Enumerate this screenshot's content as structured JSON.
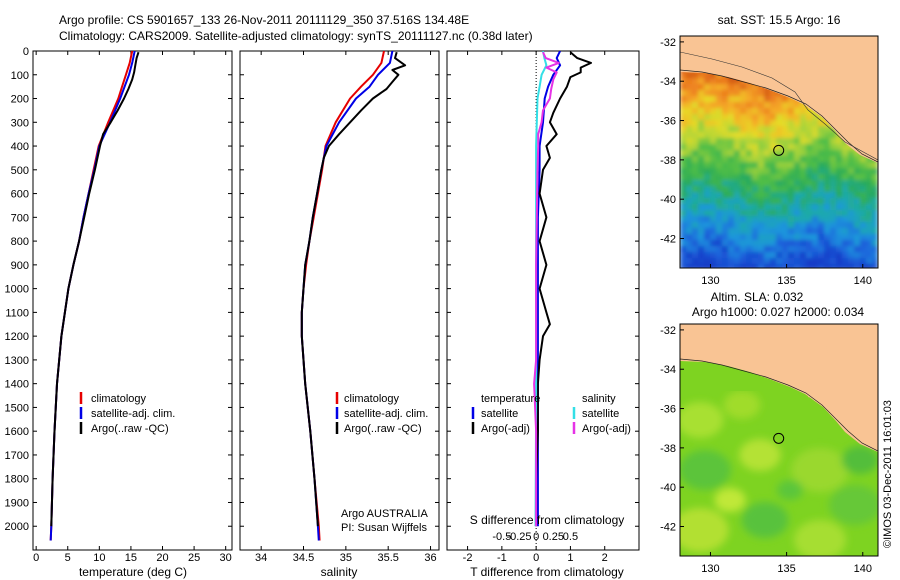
{
  "header": {
    "line1": "Argo profile: CS 5901657_133 26-Nov-2011 20111129_350 37.516S 134.48E",
    "line2": "Climatology: CARS2009. Satellite-adjusted climatology: synTS_20111127.nc (0.38d later)"
  },
  "credit": "©IMOS 03-Dec-2011 16:01:03",
  "colors": {
    "climatology": "#e60000",
    "satellite": "#0000e6",
    "argo": "#000000",
    "sal_satellite": "#33dfe6",
    "sal_argo": "#e633e6",
    "land": "#f9c494"
  },
  "chart_data": [
    {
      "type": "line",
      "panel": "temperature",
      "xlabel": "temperature (deg C)",
      "ylabel": "",
      "xlim": [
        -0.5,
        31
      ],
      "ylim": [
        2100,
        0
      ],
      "xticks": [
        0,
        5,
        10,
        15,
        20,
        25,
        30
      ],
      "yticks": [
        0,
        100,
        200,
        300,
        400,
        500,
        600,
        700,
        800,
        900,
        1000,
        1100,
        1200,
        1300,
        1400,
        1500,
        1600,
        1700,
        1800,
        1900,
        2000
      ],
      "legend": [
        "climatology",
        "satellite-adj. clim.",
        "Argo(..raw -QC)"
      ],
      "series": [
        {
          "name": "climatology",
          "color": "#e60000",
          "depth": [
            0,
            50,
            100,
            150,
            200,
            300,
            400,
            500,
            600,
            700,
            800,
            900,
            1000,
            1200,
            1400,
            1600,
            1800,
            2000,
            2060
          ],
          "values": [
            15.2,
            14.8,
            14.2,
            13.6,
            13.0,
            11.4,
            9.9,
            9.1,
            8.3,
            7.5,
            6.8,
            5.9,
            5.1,
            4.0,
            3.3,
            2.9,
            2.6,
            2.4,
            2.3
          ]
        },
        {
          "name": "satellite-adj. clim.",
          "color": "#0000e6",
          "depth": [
            0,
            50,
            100,
            150,
            200,
            300,
            400,
            500,
            600,
            700,
            800,
            900,
            1000,
            1200,
            1400,
            1600,
            1800,
            2000,
            2060
          ],
          "values": [
            15.6,
            15.2,
            14.7,
            14.0,
            13.3,
            11.7,
            10.0,
            9.2,
            8.3,
            7.5,
            6.8,
            5.9,
            5.1,
            4.0,
            3.3,
            2.9,
            2.6,
            2.4,
            2.3
          ]
        },
        {
          "name": "Argo(..raw -QC)",
          "color": "#000000",
          "depth": [
            5,
            30,
            60,
            90,
            120,
            160,
            200,
            250,
            300,
            350,
            400,
            500,
            600,
            700,
            800,
            900,
            1000,
            1200,
            1400,
            1600,
            1800,
            2000
          ],
          "values": [
            16.2,
            15.9,
            15.7,
            15.5,
            15.2,
            14.6,
            13.9,
            12.9,
            11.8,
            10.6,
            10.1,
            9.3,
            8.4,
            7.6,
            6.8,
            5.9,
            5.1,
            4.0,
            3.3,
            2.9,
            2.6,
            2.4
          ]
        }
      ]
    },
    {
      "type": "line",
      "panel": "salinity",
      "xlabel": "salinity",
      "xlim": [
        33.75,
        36.1
      ],
      "ylim": [
        2100,
        0
      ],
      "xticks": [
        34,
        34.5,
        35,
        35.5,
        36
      ],
      "xticklabels": [
        "34",
        "34.5",
        "35",
        "35.5",
        "36"
      ],
      "legend": [
        "climatology",
        "satellite-adj. clim.",
        "Argo(..raw -QC)"
      ],
      "annotation": [
        "Argo AUSTRALIA",
        "PI: Susan Wijffels"
      ],
      "series": [
        {
          "name": "climatology",
          "color": "#e60000",
          "depth": [
            0,
            50,
            100,
            150,
            200,
            300,
            400,
            500,
            600,
            700,
            800,
            900,
            1000,
            1100,
            1200,
            1400,
            1600,
            1800,
            2000,
            2060
          ],
          "values": [
            35.45,
            35.42,
            35.32,
            35.18,
            35.05,
            34.88,
            34.76,
            34.72,
            34.67,
            34.62,
            34.57,
            34.53,
            34.5,
            34.48,
            34.48,
            34.52,
            34.58,
            34.63,
            34.68,
            34.69
          ]
        },
        {
          "name": "satellite-adj. clim.",
          "color": "#0000e6",
          "depth": [
            0,
            50,
            100,
            150,
            200,
            300,
            400,
            500,
            600,
            700,
            800,
            900,
            1000,
            1100,
            1200,
            1400,
            1600,
            1800,
            2000,
            2060
          ],
          "values": [
            35.55,
            35.52,
            35.38,
            35.28,
            35.12,
            34.92,
            34.77,
            34.71,
            34.66,
            34.61,
            34.57,
            34.52,
            34.5,
            34.48,
            34.48,
            34.52,
            34.58,
            34.63,
            34.67,
            34.68
          ]
        },
        {
          "name": "Argo(..raw -QC)",
          "color": "#000000",
          "depth": [
            5,
            30,
            60,
            80,
            100,
            130,
            160,
            200,
            250,
            300,
            350,
            400,
            450,
            500,
            600,
            700,
            800,
            900,
            1000,
            1100,
            1200,
            1400,
            1600,
            1800,
            2000
          ],
          "values": [
            35.6,
            35.58,
            35.7,
            35.55,
            35.62,
            35.55,
            35.48,
            35.32,
            35.18,
            35.05,
            34.92,
            34.8,
            34.74,
            34.71,
            34.66,
            34.61,
            34.57,
            34.52,
            34.5,
            34.48,
            34.48,
            34.52,
            34.58,
            34.63,
            34.67
          ]
        }
      ]
    },
    {
      "type": "line",
      "panel": "difference",
      "xlabel": "T difference from climatology",
      "top_label": "S difference from climatology",
      "xlim": [
        -2.6,
        3.0
      ],
      "ylim": [
        2100,
        0
      ],
      "xticks": [
        -2,
        -1,
        0,
        1,
        2
      ],
      "s_ticks": [
        -0.5,
        -0.25,
        0,
        0.25,
        0.5
      ],
      "s_ticklabels": [
        "-0.5",
        "-0.25",
        "0",
        "0.25",
        "0.5"
      ],
      "legend": {
        "temperature_title": "temperature",
        "salinity_title": "salinity",
        "temperature": [
          "satellite",
          "Argo(-adj)"
        ],
        "salinity": [
          "satellite",
          "Argo(-adj)"
        ]
      },
      "series": [
        {
          "name": "temperature satellite",
          "color": "#0000e6",
          "depth": [
            0,
            30,
            60,
            100,
            150,
            200,
            300,
            400,
            500,
            700,
            900,
            1200,
            1500,
            2000
          ],
          "values": [
            0.7,
            0.6,
            0.7,
            0.5,
            0.35,
            0.25,
            0.2,
            0.1,
            0.1,
            0.05,
            0.05,
            0.05,
            0.05,
            0.05
          ]
        },
        {
          "name": "temperature Argo(-adj)",
          "color": "#000000",
          "depth": [
            5,
            30,
            50,
            70,
            90,
            110,
            150,
            200,
            260,
            300,
            350,
            400,
            450,
            500,
            600,
            700,
            800,
            900,
            1000,
            1100,
            1150,
            1200,
            1300,
            1400,
            1600,
            1800,
            2000
          ],
          "values": [
            1.0,
            1.2,
            1.6,
            1.3,
            1.3,
            1.0,
            0.9,
            0.7,
            0.5,
            0.4,
            0.6,
            0.3,
            0.4,
            0.2,
            0.1,
            0.3,
            0.1,
            0.3,
            0.1,
            0.3,
            0.4,
            0.2,
            0.1,
            0.05,
            0.05,
            0.0,
            0.0
          ]
        },
        {
          "name": "salinity satellite",
          "color": "#33dfe6",
          "depth": [
            0,
            30,
            60,
            100,
            150,
            200,
            300,
            400,
            500,
            700,
            900,
            1200,
            1500,
            2000
          ],
          "values": [
            0.1,
            0.12,
            0.15,
            0.08,
            0.05,
            0.02,
            0.01,
            0.0,
            0.0,
            0.0,
            0.0,
            0.0,
            0.0,
            -0.01
          ]
        },
        {
          "name": "salinity Argo(-adj)",
          "color": "#e633e6",
          "depth": [
            5,
            30,
            50,
            70,
            90,
            120,
            160,
            200,
            250,
            300,
            350,
            400,
            500,
            700,
            900,
            1100,
            1300,
            1400,
            1600,
            2000
          ],
          "values": [
            0.1,
            0.14,
            0.33,
            0.15,
            0.3,
            0.25,
            0.22,
            0.2,
            0.1,
            0.08,
            0.03,
            0.03,
            0.02,
            0.01,
            0.0,
            0.0,
            0.0,
            -0.03,
            0.0,
            0.0
          ]
        }
      ]
    },
    {
      "type": "heatmap",
      "panel": "sst-map",
      "title": "sat. SST: 15.5 Argo: 16",
      "xlim": [
        128,
        141
      ],
      "ylim": [
        -43.5,
        -31.7
      ],
      "xticks": [
        130,
        135,
        140
      ],
      "yticks": [
        -32,
        -34,
        -36,
        -38,
        -40,
        -42
      ],
      "argo_position": {
        "lon": 134.48,
        "lat": -37.516
      }
    },
    {
      "type": "heatmap",
      "panel": "sla-map",
      "title_line1": "Altim. SLA: 0.032",
      "title_line2": "Argo h1000: 0.027 h2000: 0.034",
      "xlim": [
        128,
        141
      ],
      "ylim": [
        -43.5,
        -31.7
      ],
      "xticks": [
        130,
        135,
        140
      ],
      "yticks": [
        -32,
        -34,
        -36,
        -38,
        -40,
        -42
      ],
      "argo_position": {
        "lon": 134.48,
        "lat": -37.516
      }
    }
  ]
}
